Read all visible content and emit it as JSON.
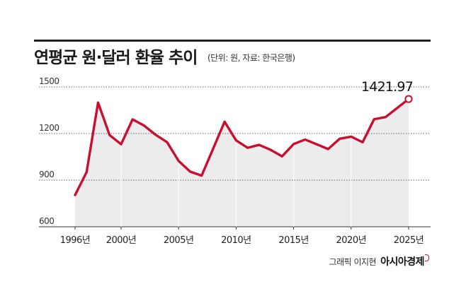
{
  "header": {
    "title": "연평균 원·달러 환율 추이",
    "subtitle": "(단위: 원, 자료: 한국은행)"
  },
  "credit": {
    "text": "그래픽 이지현",
    "brand": "아시아경제"
  },
  "colors": {
    "line": "#c8102e",
    "area": "#ececec",
    "grid": "#333333"
  },
  "chart_data": {
    "type": "area",
    "title": "연평균 원·달러 환율 추이",
    "xlabel": "",
    "ylabel": "",
    "ylim": [
      600,
      1500
    ],
    "y_ticks": [
      {
        "value": 1500,
        "label": "1500"
      },
      {
        "value": 1200,
        "label": "1200"
      },
      {
        "value": 900,
        "label": "900"
      },
      {
        "value": 600,
        "label": "600"
      }
    ],
    "x_ticks": [
      {
        "value": 1996,
        "label": "1996년"
      },
      {
        "value": 2000,
        "label": "2000년"
      },
      {
        "value": 2005,
        "label": "2005년"
      },
      {
        "value": 2010,
        "label": "2010년"
      },
      {
        "value": 2015,
        "label": "2015년"
      },
      {
        "value": 2020,
        "label": "2020년"
      },
      {
        "value": 2025,
        "label": "2025년"
      }
    ],
    "grid": true,
    "x": [
      1996,
      1997,
      1998,
      1999,
      2000,
      2001,
      2002,
      2003,
      2004,
      2005,
      2006,
      2007,
      2008,
      2009,
      2010,
      2011,
      2012,
      2013,
      2014,
      2015,
      2016,
      2017,
      2018,
      2019,
      2020,
      2021,
      2022,
      2023,
      2024,
      2025
    ],
    "values": [
      804,
      951,
      1399,
      1190,
      1131,
      1291,
      1251,
      1192,
      1144,
      1024,
      955,
      929,
      1102,
      1276,
      1156,
      1108,
      1127,
      1095,
      1053,
      1132,
      1161,
      1131,
      1100,
      1166,
      1180,
      1144,
      1292,
      1306,
      1364,
      1421.97
    ],
    "end_label": "1421.97"
  }
}
